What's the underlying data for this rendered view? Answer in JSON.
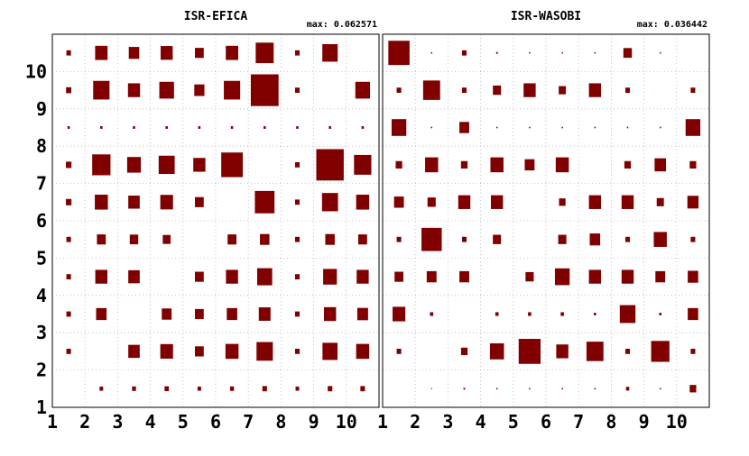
{
  "chart_data": [
    {
      "type": "hinton",
      "title": "ISR-EFICA",
      "max_label": "max: 0.062571",
      "color": "#800000",
      "xlim": [
        1,
        11
      ],
      "ylim": [
        1,
        11
      ],
      "x_ticks": [
        1,
        2,
        3,
        4,
        5,
        6,
        7,
        8,
        9,
        10
      ],
      "y_ticks": [
        1,
        2,
        3,
        4,
        5,
        6,
        7,
        8,
        9,
        10
      ],
      "grid": true,
      "rows": [
        [
          0.14,
          0.38,
          0.32,
          0.37,
          0.27,
          0.38,
          0.55,
          0.14,
          0.47,
          0.0
        ],
        [
          0.16,
          0.5,
          0.37,
          0.45,
          0.31,
          0.5,
          0.85,
          0.14,
          0.0,
          0.45
        ],
        [
          0.07,
          0.07,
          0.07,
          0.07,
          0.07,
          0.07,
          0.07,
          0.07,
          0.07,
          0.07
        ],
        [
          0.17,
          0.56,
          0.42,
          0.49,
          0.37,
          0.66,
          0.0,
          0.14,
          0.84,
          0.53
        ],
        [
          0.17,
          0.4,
          0.35,
          0.39,
          0.27,
          0.0,
          0.6,
          0.14,
          0.49,
          0.4
        ],
        [
          0.14,
          0.27,
          0.26,
          0.24,
          0.0,
          0.27,
          0.29,
          0.14,
          0.29,
          0.27
        ],
        [
          0.14,
          0.37,
          0.35,
          0.0,
          0.27,
          0.37,
          0.46,
          0.14,
          0.42,
          0.37
        ],
        [
          0.14,
          0.32,
          0.0,
          0.3,
          0.27,
          0.32,
          0.36,
          0.14,
          0.37,
          0.33
        ],
        [
          0.14,
          0.0,
          0.35,
          0.39,
          0.27,
          0.4,
          0.5,
          0.14,
          0.46,
          0.4
        ],
        [
          0.0,
          0.11,
          0.12,
          0.13,
          0.11,
          0.12,
          0.14,
          0.11,
          0.14,
          0.14
        ]
      ]
    },
    {
      "type": "hinton",
      "title": "ISR-WASOBI",
      "max_label": "max: 0.036442",
      "color": "#800000",
      "xlim": [
        1,
        11
      ],
      "ylim": [
        1,
        11
      ],
      "x_ticks": [
        1,
        2,
        3,
        4,
        5,
        6,
        7,
        8,
        9,
        10
      ],
      "y_ticks": [
        1,
        2,
        3,
        4,
        5,
        6,
        7,
        8,
        9,
        10
      ],
      "grid": true,
      "rows": [
        [
          0.65,
          0.04,
          0.14,
          0.05,
          0.04,
          0.04,
          0.04,
          0.26,
          0.04,
          0.0
        ],
        [
          0.14,
          0.52,
          0.14,
          0.25,
          0.37,
          0.22,
          0.37,
          0.14,
          0.0,
          0.14
        ],
        [
          0.45,
          0.04,
          0.3,
          0.04,
          0.04,
          0.04,
          0.04,
          0.04,
          0.04,
          0.45
        ],
        [
          0.2,
          0.4,
          0.2,
          0.4,
          0.3,
          0.4,
          0.0,
          0.2,
          0.35,
          0.2
        ],
        [
          0.3,
          0.25,
          0.37,
          0.37,
          0.0,
          0.2,
          0.37,
          0.37,
          0.22,
          0.34
        ],
        [
          0.14,
          0.62,
          0.14,
          0.25,
          0.0,
          0.25,
          0.32,
          0.14,
          0.4,
          0.14
        ],
        [
          0.27,
          0.3,
          0.3,
          0.0,
          0.25,
          0.45,
          0.37,
          0.37,
          0.3,
          0.32
        ],
        [
          0.39,
          0.1,
          0.0,
          0.1,
          0.1,
          0.1,
          0.07,
          0.48,
          0.07,
          0.32
        ],
        [
          0.14,
          0.0,
          0.2,
          0.43,
          0.67,
          0.37,
          0.52,
          0.14,
          0.56,
          0.14
        ],
        [
          0.0,
          0.03,
          0.05,
          0.04,
          0.04,
          0.04,
          0.04,
          0.1,
          0.04,
          0.2
        ]
      ]
    }
  ]
}
